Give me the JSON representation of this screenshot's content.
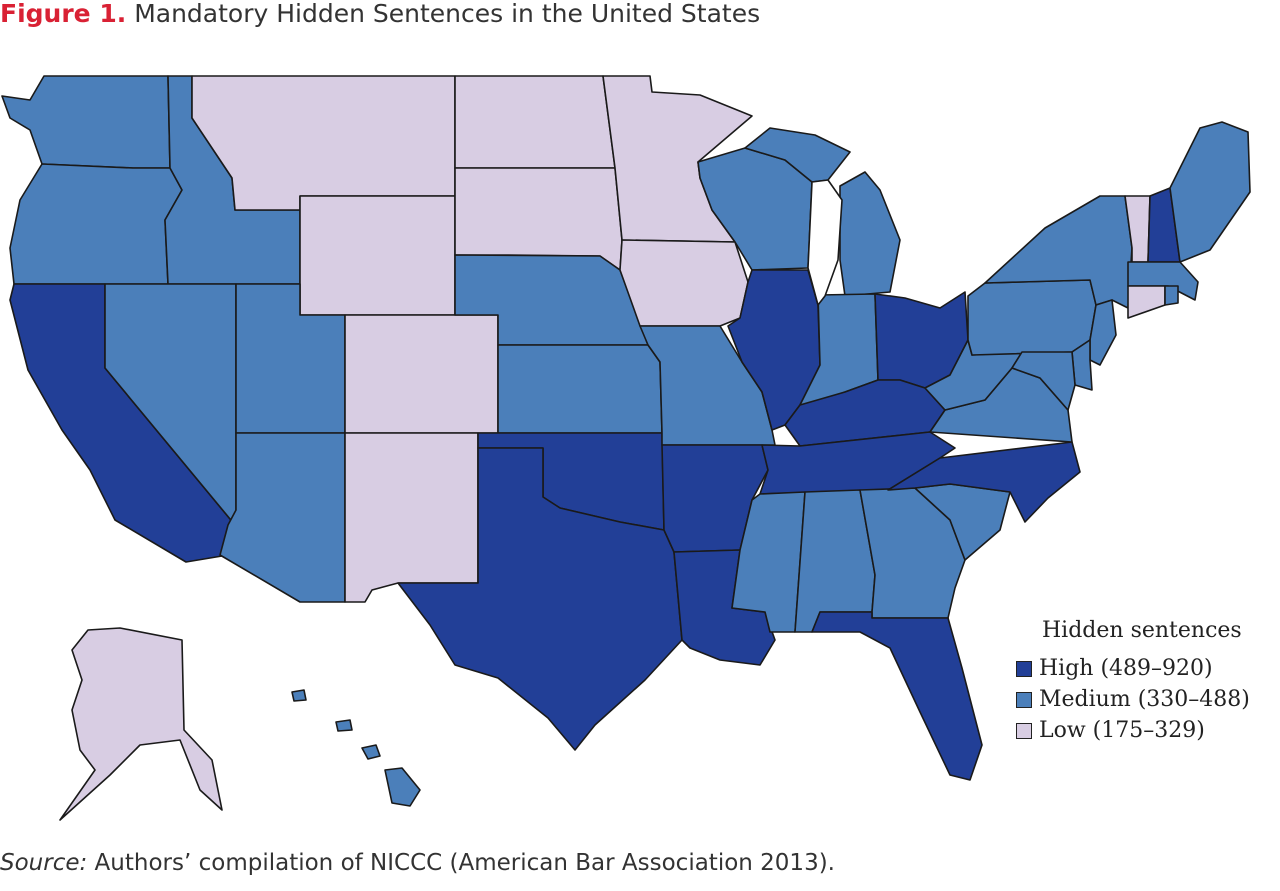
{
  "figure": {
    "label": "Figure 1.",
    "title": "Mandatory Hidden Sentences in the United States"
  },
  "legend": {
    "title": "Hidden sentences",
    "items": [
      {
        "key": "high",
        "label": "High (489–920)",
        "color": "#223f97"
      },
      {
        "key": "medium",
        "label": "Medium (330–488)",
        "color": "#4b7fba"
      },
      {
        "key": "low",
        "label": "Low (175–329)",
        "color": "#d8cde3"
      }
    ]
  },
  "states": {
    "WA": "medium",
    "OR": "medium",
    "CA": "high",
    "ID": "medium",
    "NV": "medium",
    "MT": "low",
    "WY": "low",
    "UT": "medium",
    "AZ": "medium",
    "CO": "low",
    "NM": "low",
    "ND": "low",
    "SD": "low",
    "NE": "medium",
    "KS": "medium",
    "OK": "high",
    "TX": "high",
    "MN": "low",
    "IA": "low",
    "MO": "medium",
    "AR": "high",
    "LA": "high",
    "WI": "medium",
    "IL": "high",
    "MI": "medium",
    "IN": "medium",
    "OH": "high",
    "KY": "high",
    "TN": "high",
    "MS": "medium",
    "AL": "medium",
    "GA": "medium",
    "FL": "high",
    "SC": "medium",
    "NC": "high",
    "VA": "medium",
    "WV": "medium",
    "PA": "medium",
    "NY": "medium",
    "VT": "low",
    "NH": "high",
    "ME": "medium",
    "MA": "medium",
    "CT": "low",
    "RI": "medium",
    "NJ": "medium",
    "DE": "medium",
    "MD": "medium",
    "AK": "low",
    "HI": "medium"
  },
  "source": {
    "label": "Source:",
    "text": " Authors’ compilation of NICCC (American Bar Association 2013)."
  }
}
